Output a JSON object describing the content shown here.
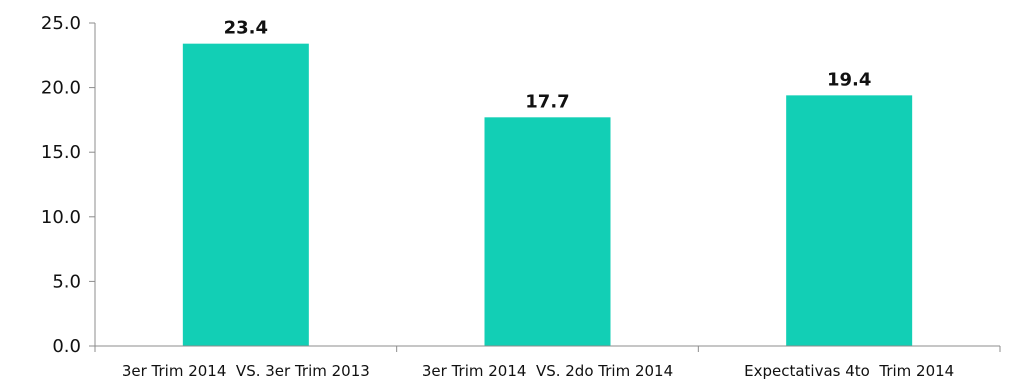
{
  "chart_data": {
    "type": "bar",
    "title": "",
    "xlabel": "",
    "ylabel": "",
    "categories": [
      "3er Trim 2014  VS. 3er Trim 2013",
      "3er Trim 2014  VS. 2do Trim 2014",
      "Expectativas 4to  Trim 2014"
    ],
    "values": [
      23.4,
      17.7,
      19.4
    ],
    "data_labels": [
      "23.4",
      "17.7",
      "19.4"
    ],
    "ylim": [
      0,
      25
    ],
    "yticks": [
      0,
      5,
      10,
      15,
      20,
      25
    ],
    "ytick_labels": [
      "0.0",
      "5.0",
      "10.0",
      "15.0",
      "20.0",
      "25.0"
    ],
    "grid": false,
    "legend": "none",
    "bar_color": "#12cfb5",
    "axis_color": "#8c8c8c"
  }
}
